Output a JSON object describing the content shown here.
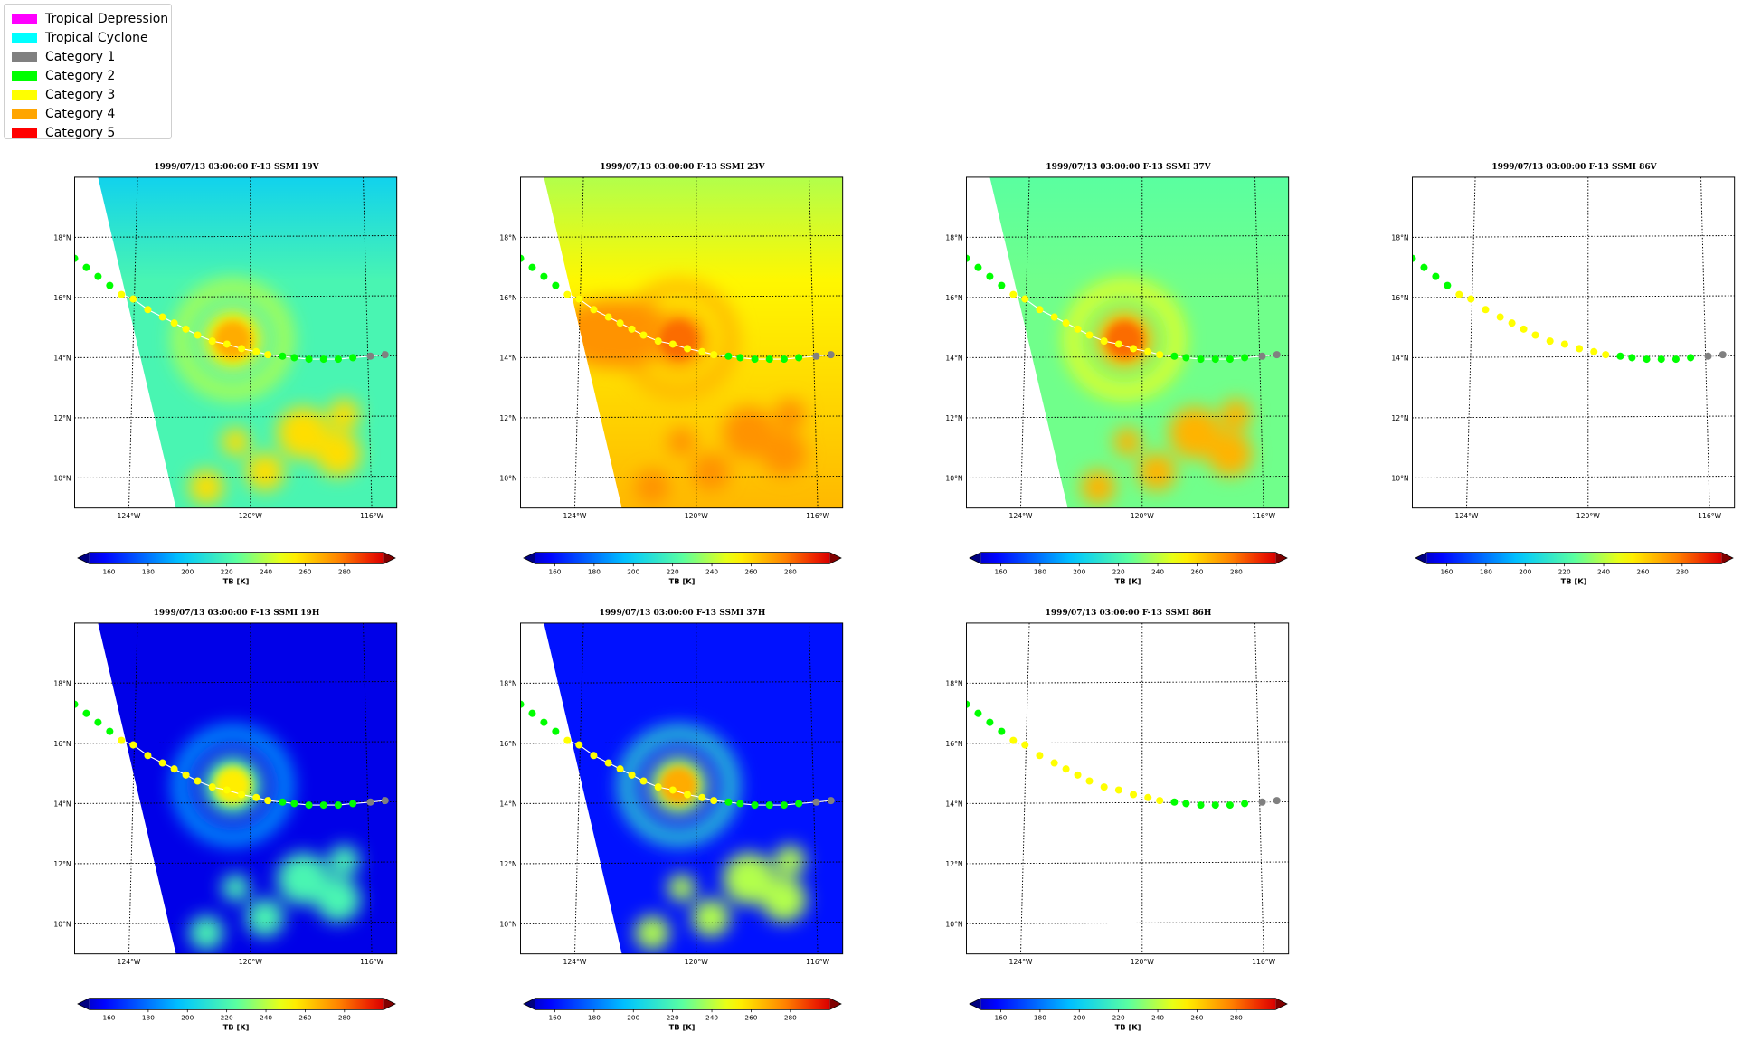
{
  "legend": {
    "items": [
      {
        "label": "Tropical Depression",
        "color": "#ff00ff"
      },
      {
        "label": "Tropical Cyclone",
        "color": "#00ffff"
      },
      {
        "label": "Category 1",
        "color": "#808080"
      },
      {
        "label": "Category 2",
        "color": "#00ff00"
      },
      {
        "label": "Category 3",
        "color": "#ffff00"
      },
      {
        "label": "Category 4",
        "color": "#ffa500"
      },
      {
        "label": "Category 5",
        "color": "#ff0000"
      }
    ]
  },
  "colorbar": {
    "ticks": [
      "160",
      "180",
      "200",
      "220",
      "240",
      "260",
      "280"
    ],
    "label": "TB [K]",
    "range": [
      150,
      300
    ],
    "colormap": "jet"
  },
  "axes": {
    "lat_labels": [
      "18°N",
      "16°N",
      "14°N",
      "12°N",
      "10°N"
    ],
    "lon_labels": [
      "124°W",
      "120°W",
      "116°W"
    ]
  },
  "panels": [
    {
      "title": "1999/07/13 03:00:00  F-13 SSMI 19V",
      "channel": "19V",
      "has_data": true
    },
    {
      "title": "1999/07/13 03:00:00  F-13 SSMI 23V",
      "channel": "23V",
      "has_data": true
    },
    {
      "title": "1999/07/13 03:00:00  F-13 SSMI 37V",
      "channel": "37V",
      "has_data": true
    },
    {
      "title": "1999/07/13 03:00:00  F-13 SSMI 86V",
      "channel": "86V",
      "has_data": false
    },
    {
      "title": "1999/07/13 03:00:00  F-13 SSMI 19H",
      "channel": "19H",
      "has_data": true
    },
    {
      "title": "1999/07/13 03:00:00  F-13 SSMI 37H",
      "channel": "37H",
      "has_data": true
    },
    {
      "title": "1999/07/13 03:00:00  F-13 SSMI 86H",
      "channel": "86H",
      "has_data": false
    }
  ],
  "chart_data": {
    "type": "scatter",
    "track": {
      "lon": [
        -126.0,
        -125.6,
        -125.2,
        -124.8,
        -124.4,
        -124.0,
        -123.5,
        -123.0,
        -122.6,
        -122.2,
        -121.8,
        -121.3,
        -120.8,
        -120.3,
        -119.8,
        -119.4,
        -118.9,
        -118.5,
        -118.0,
        -117.5,
        -117.0,
        -116.5,
        -115.9,
        -115.4
      ],
      "lat": [
        17.3,
        17.0,
        16.7,
        16.4,
        16.1,
        15.95,
        15.6,
        15.35,
        15.15,
        14.95,
        14.75,
        14.55,
        14.45,
        14.3,
        14.2,
        14.1,
        14.05,
        14.0,
        13.95,
        13.95,
        13.95,
        14.0,
        14.05,
        14.1
      ],
      "category": [
        "Category 2",
        "Category 2",
        "Category 2",
        "Category 2",
        "Category 3",
        "Category 3",
        "Category 3",
        "Category 3",
        "Category 3",
        "Category 3",
        "Category 3",
        "Category 3",
        "Category 3",
        "Category 3",
        "Category 3",
        "Category 3",
        "Category 2",
        "Category 2",
        "Category 2",
        "Category 2",
        "Category 2",
        "Category 2",
        "Category 1",
        "Category 1"
      ]
    },
    "xlabel": "",
    "ylabel": "",
    "xlim": [
      -126,
      -115
    ],
    "ylim": [
      9,
      20
    ],
    "grid": true,
    "legend_position": "top-left"
  }
}
